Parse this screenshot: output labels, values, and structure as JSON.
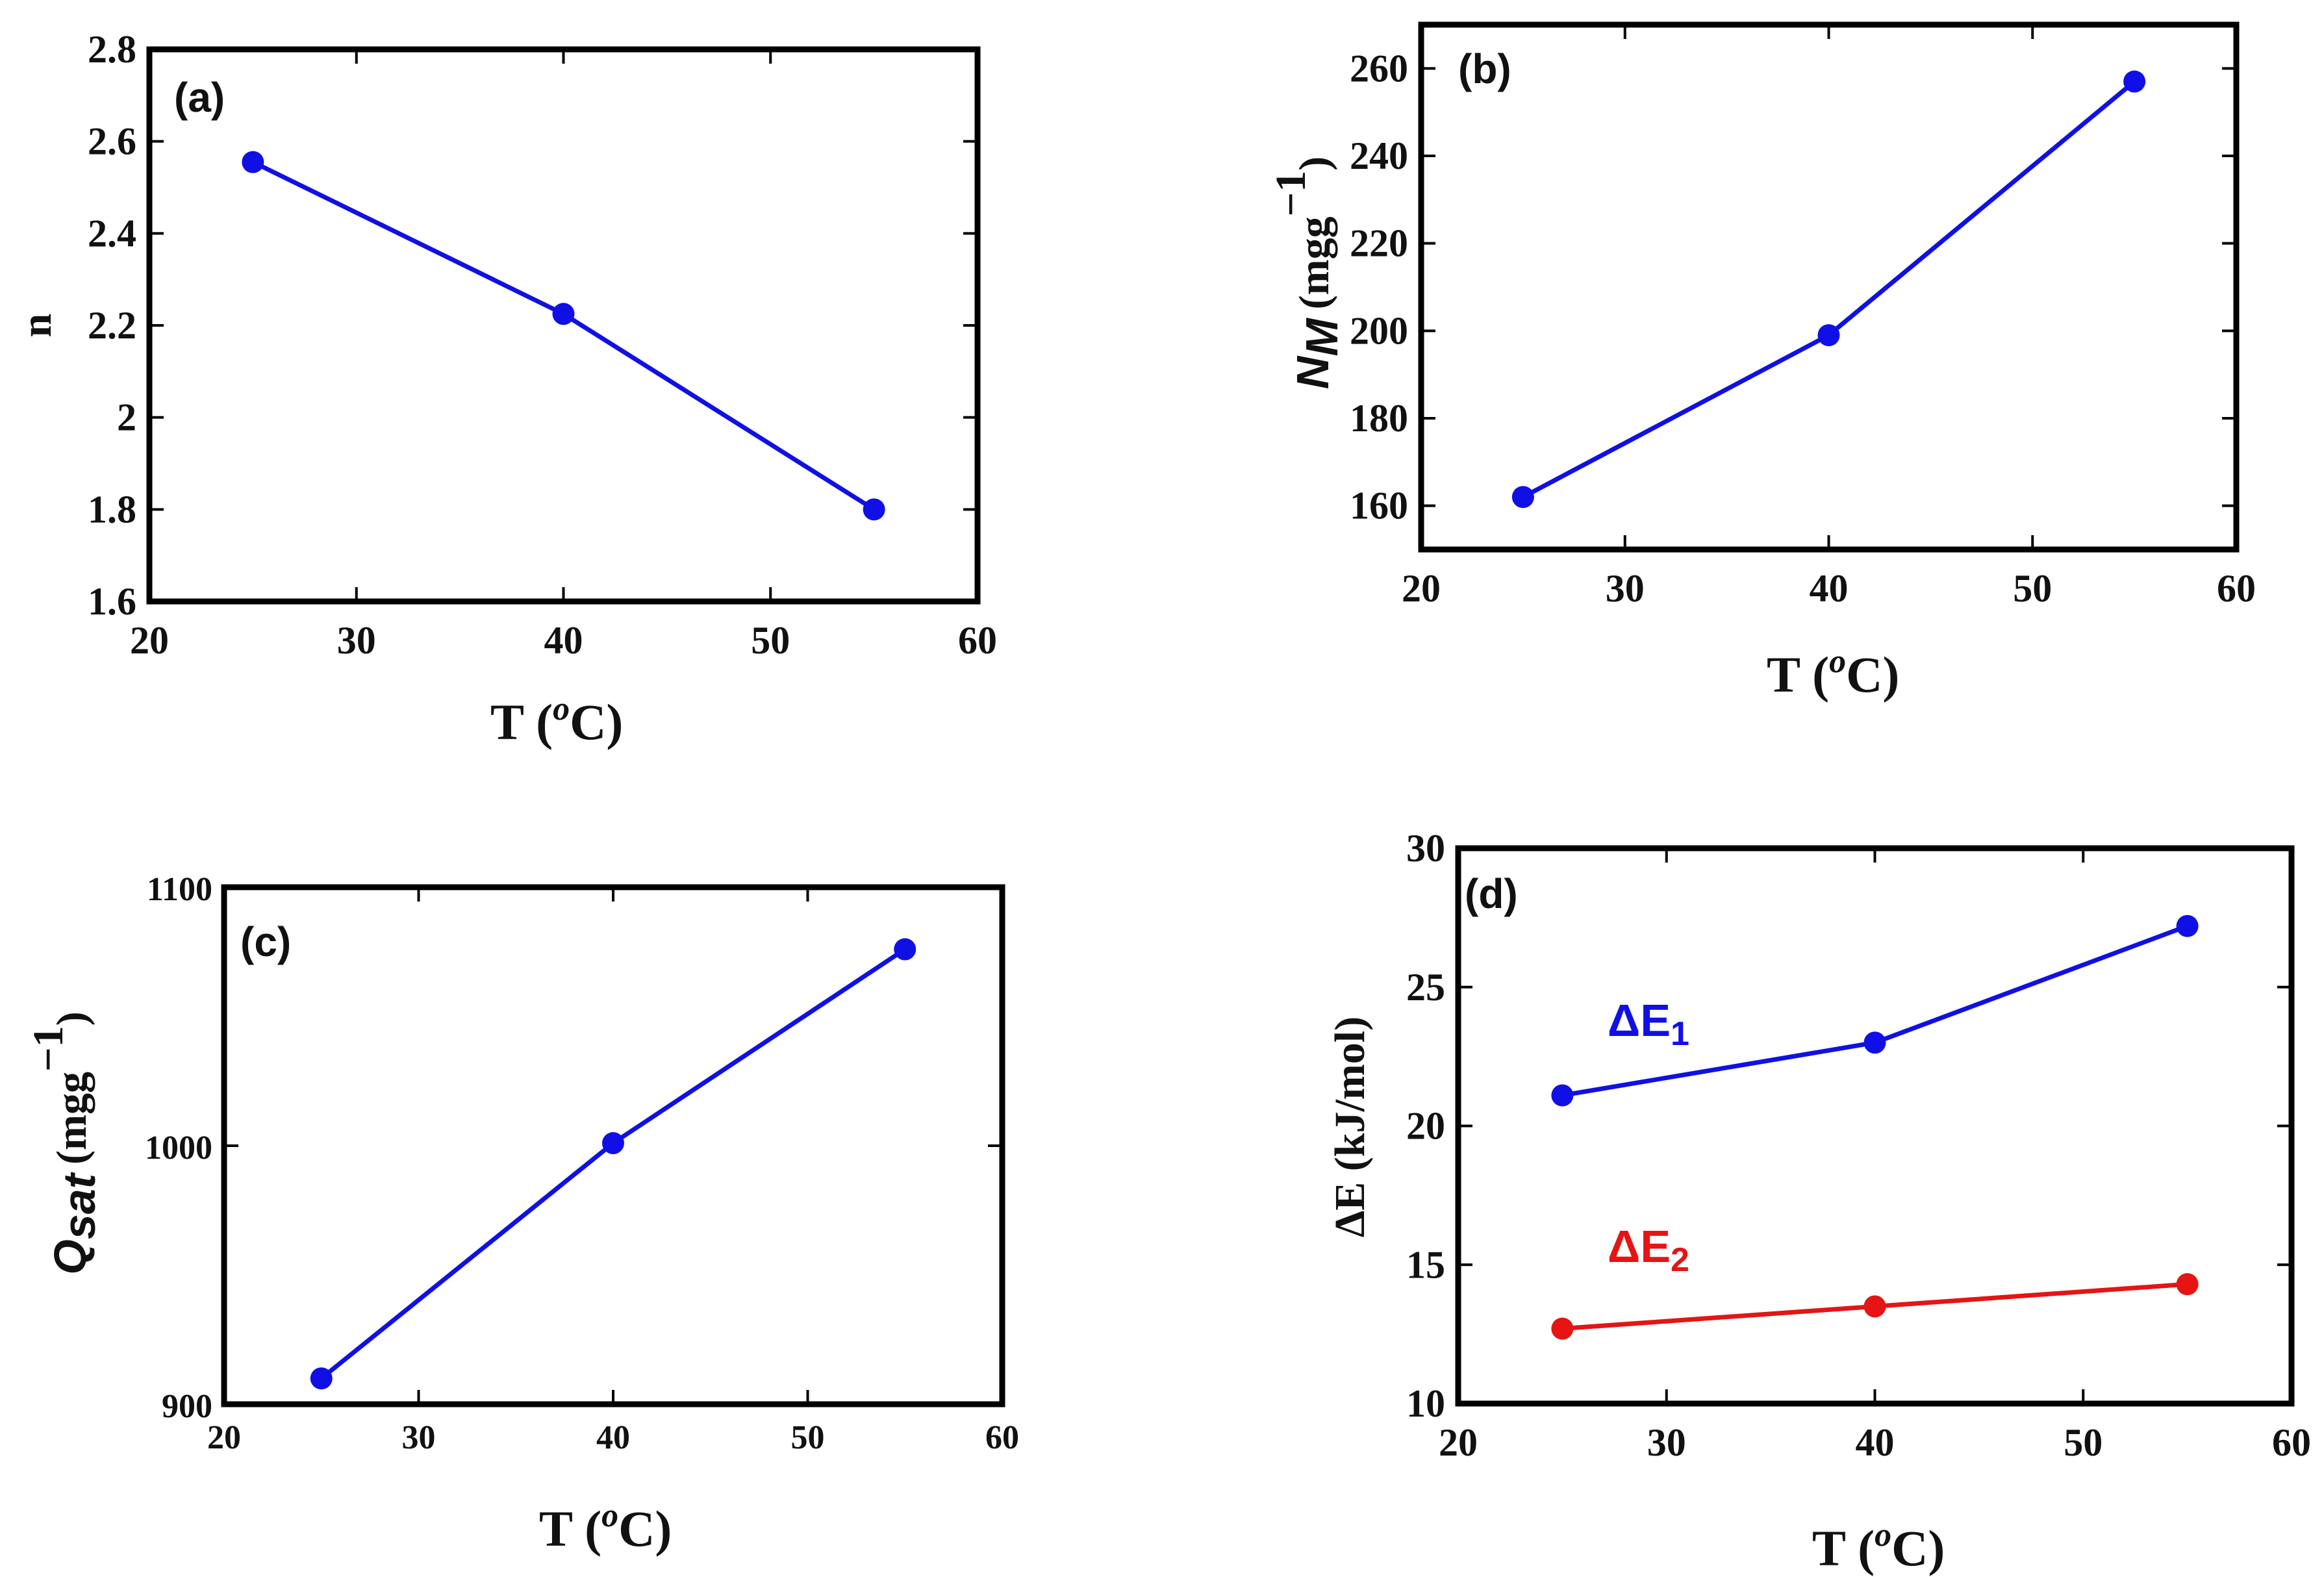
{
  "colors": {
    "blue": "#1010e6",
    "red": "#e61414",
    "axis": "#000000"
  },
  "chart_data": [
    {
      "id": "a",
      "type": "line",
      "panel_label": "(a)",
      "xlabel": "T (",
      "xlabel_unit": "C)",
      "xlabel_deg": "o",
      "ylabel": "n",
      "xlim": [
        20,
        60
      ],
      "ylim": [
        1.6,
        2.8
      ],
      "x_ticks": [
        "20",
        "30",
        "40",
        "50",
        "60"
      ],
      "y_ticks": [
        "1.6",
        "1.8",
        "2",
        "2.2",
        "2.4",
        "2.6",
        "2.8"
      ],
      "series": [
        {
          "name": "n",
          "color": "#1010e6",
          "x": [
            25,
            40,
            55
          ],
          "y": [
            2.555,
            2.225,
            1.8
          ]
        }
      ]
    },
    {
      "id": "b",
      "type": "line",
      "panel_label": "(b)",
      "xlabel": "T (",
      "xlabel_unit": "C)",
      "xlabel_deg": "o",
      "ylabel_symbol": "N",
      "ylabel_sub": "M",
      "ylabel_unit": "(mgg",
      "ylabel_sup": "−1",
      "ylabel_close": ")",
      "xlim": [
        20,
        60
      ],
      "ylim": [
        150,
        270
      ],
      "x_ticks": [
        "20",
        "30",
        "40",
        "50",
        "60"
      ],
      "y_ticks": [
        "160",
        "180",
        "200",
        "220",
        "240",
        "260"
      ],
      "series": [
        {
          "name": "N_M",
          "color": "#1010e6",
          "x": [
            25,
            40,
            55
          ],
          "y": [
            162,
            199,
            257
          ]
        }
      ]
    },
    {
      "id": "c",
      "type": "line",
      "panel_label": "(c)",
      "xlabel": "T (",
      "xlabel_unit": "C)",
      "xlabel_deg": "o",
      "ylabel_symbol": "Q",
      "ylabel_sub": "sat",
      "ylabel_unit": "(mgg",
      "ylabel_sup": "−1",
      "ylabel_close": ")",
      "xlim": [
        20,
        60
      ],
      "ylim": [
        900,
        1100
      ],
      "x_ticks": [
        "20",
        "30",
        "40",
        "50",
        "60"
      ],
      "y_ticks": [
        "900",
        "1000",
        "1100"
      ],
      "series": [
        {
          "name": "Q_sat",
          "color": "#1010e6",
          "x": [
            25,
            40,
            55
          ],
          "y": [
            910,
            1001,
            1076
          ]
        }
      ]
    },
    {
      "id": "d",
      "type": "line",
      "panel_label": "(d)",
      "xlabel": "T (",
      "xlabel_unit": "C)",
      "xlabel_deg": "o",
      "ylabel": "ΔE (kJ/mol)",
      "xlim": [
        20,
        60
      ],
      "ylim": [
        10,
        30
      ],
      "x_ticks": [
        "20",
        "30",
        "40",
        "50",
        "60"
      ],
      "y_ticks": [
        "10",
        "15",
        "20",
        "25",
        "30"
      ],
      "series": [
        {
          "name": "ΔE",
          "sub": "1",
          "color": "#1010e6",
          "x": [
            25,
            40,
            55
          ],
          "y": [
            21.1,
            23.0,
            27.2
          ]
        },
        {
          "name": "ΔE",
          "sub": "2",
          "color": "#e61414",
          "x": [
            25,
            40,
            55
          ],
          "y": [
            12.7,
            13.5,
            14.3
          ]
        }
      ]
    }
  ]
}
